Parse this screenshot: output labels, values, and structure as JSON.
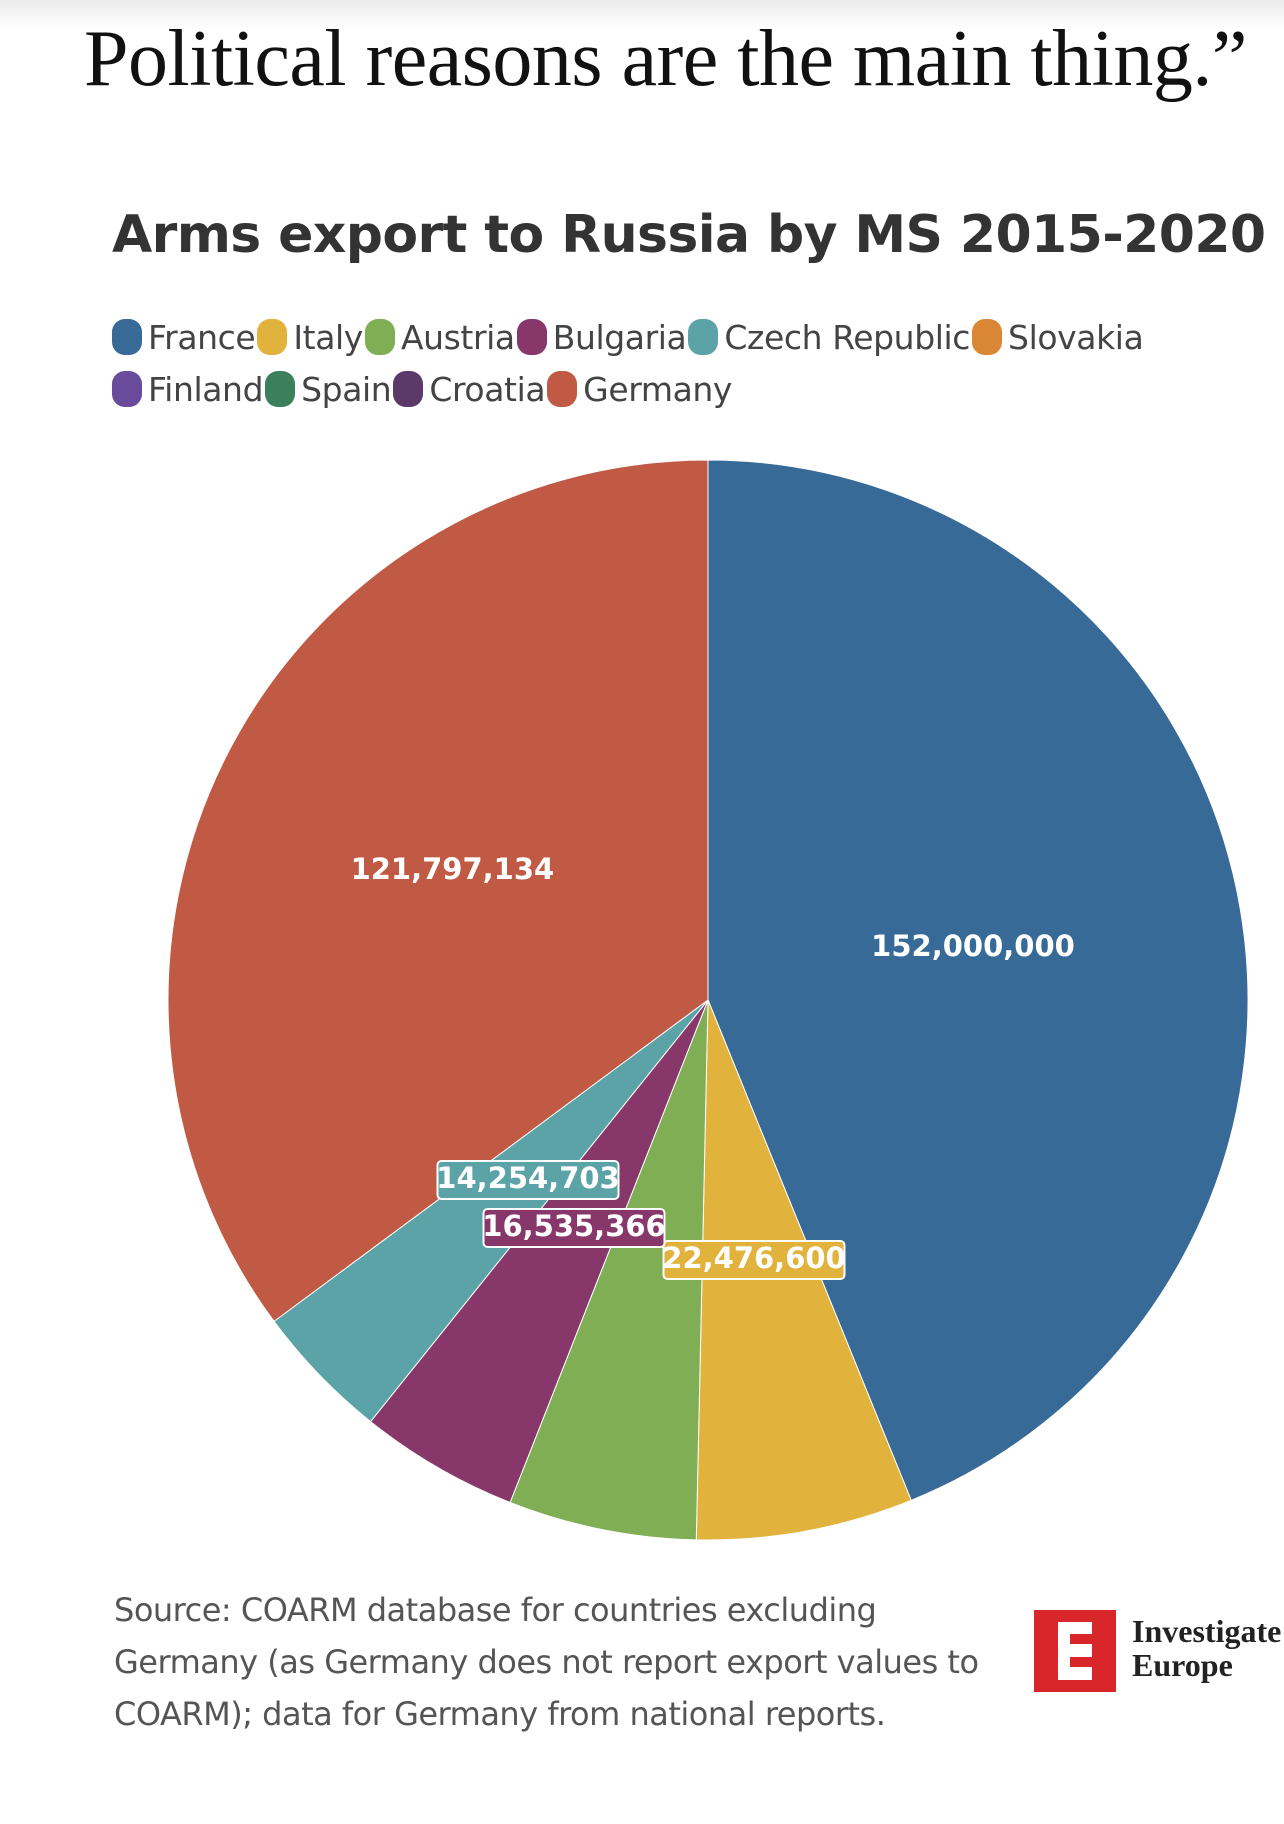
{
  "header": {
    "quote": "Political reasons are the main thing.”"
  },
  "colors": {
    "France": "#386a97",
    "Italy": "#e1b33c",
    "Austria": "#7fae55",
    "Bulgaria": "#87376a",
    "Czech Republic": "#5ba3a6",
    "Slovakia": "#d98735",
    "Finland": "#6a4a9a",
    "Spain": "#3b805a",
    "Croatia": "#5b3a69",
    "Germany": "#c05a44"
  },
  "chart_data": {
    "type": "pie",
    "title": "Arms export to Russia by MS 2015-2020",
    "legend": [
      "France",
      "Italy",
      "Austria",
      "Bulgaria",
      "Czech Republic",
      "Slovakia",
      "Finland",
      "Spain",
      "Croatia",
      "Germany"
    ],
    "legend_position": "top",
    "slices": [
      {
        "label": "France",
        "value": 152000000,
        "display": "152,000,000"
      },
      {
        "label": "Italy",
        "value": 22476600,
        "display": "22,476,600"
      },
      {
        "label": "Austria",
        "value": 19500000,
        "display": ""
      },
      {
        "label": "Bulgaria",
        "value": 16535366,
        "display": "16,535,366"
      },
      {
        "label": "Czech Republic",
        "value": 14254703,
        "display": "14,254,703"
      },
      {
        "label": "Germany",
        "value": 121797134,
        "display": "121,797,134"
      }
    ]
  },
  "source": {
    "lines": [
      "Source: COARM database for countries excluding",
      "Germany (as Germany does not report export values to",
      "COARM); data for Germany from national reports."
    ]
  },
  "logo": {
    "letter": "E",
    "lines": [
      "Investigate",
      "Europe"
    ]
  }
}
